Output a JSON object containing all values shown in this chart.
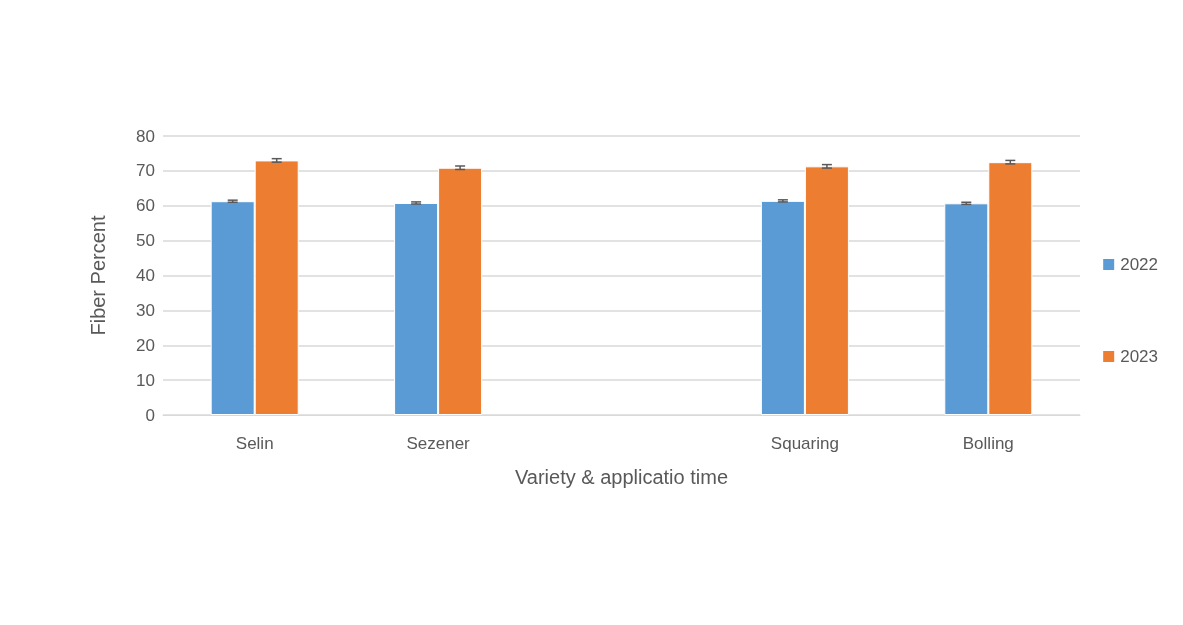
{
  "chart_data": {
    "type": "bar",
    "xlabel": "Variety & applicatio time",
    "ylabel": "Fiber Percent",
    "categories": [
      "Selin",
      "Sezener",
      null,
      "Squaring",
      "Bolling"
    ],
    "series": [
      {
        "name": "2022",
        "color": "#5b9bd5",
        "values": [
          61.3,
          60.8,
          null,
          61.4,
          60.7
        ],
        "errors": [
          0.3,
          0.3,
          null,
          0.3,
          0.3
        ]
      },
      {
        "name": "2023",
        "color": "#ed7d31",
        "values": [
          73.0,
          70.9,
          null,
          71.3,
          72.5
        ],
        "errors": [
          0.5,
          0.5,
          null,
          0.5,
          0.5
        ]
      }
    ],
    "ylim": [
      0,
      80
    ],
    "yticks": [
      0,
      10,
      20,
      30,
      40,
      50,
      60,
      70,
      80
    ],
    "grid": "y",
    "legend": "right"
  }
}
